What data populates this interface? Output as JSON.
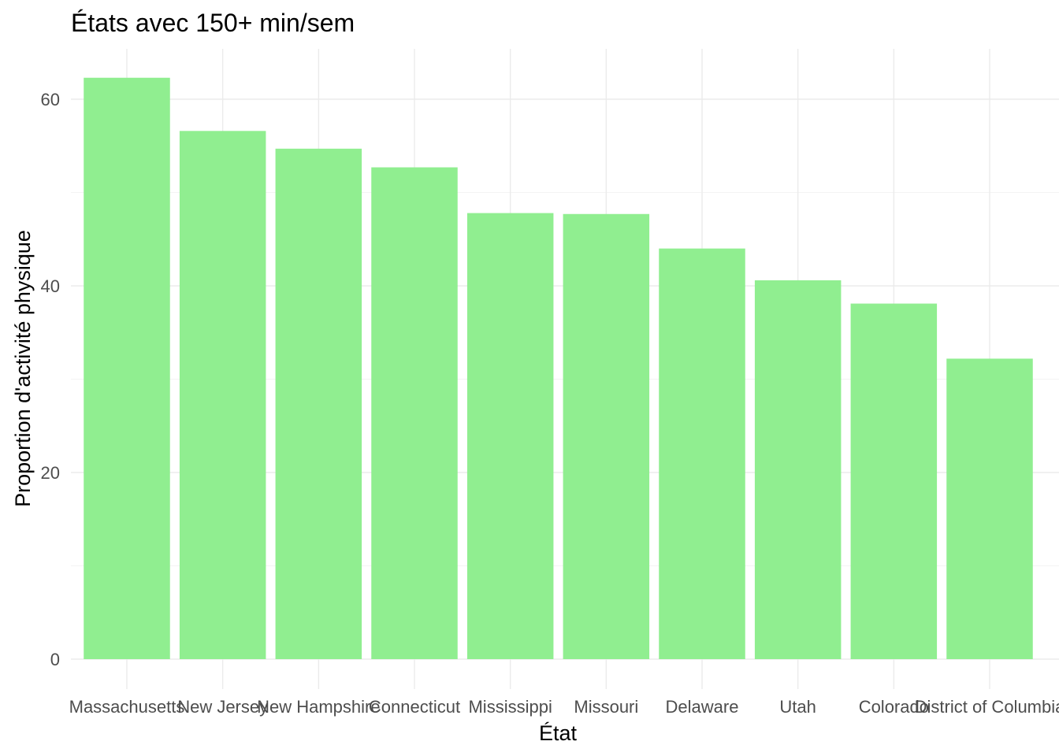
{
  "chart_data": {
    "type": "bar",
    "title": "États avec 150+ min/sem",
    "xlabel": "État",
    "ylabel": "Proportion d'activité physique",
    "categories": [
      "Massachusetts",
      "New Jersey",
      "New Hampshire",
      "Connecticut",
      "Mississippi",
      "Missouri",
      "Delaware",
      "Utah",
      "Colorado",
      "District of Columbia"
    ],
    "values": [
      62.3,
      56.6,
      54.7,
      52.7,
      47.8,
      47.7,
      44.0,
      40.6,
      38.1,
      32.2
    ],
    "ylim": [
      0,
      65
    ],
    "yticks": [
      0,
      20,
      40,
      60
    ],
    "grid": true,
    "bar_color": "#90ee90"
  }
}
